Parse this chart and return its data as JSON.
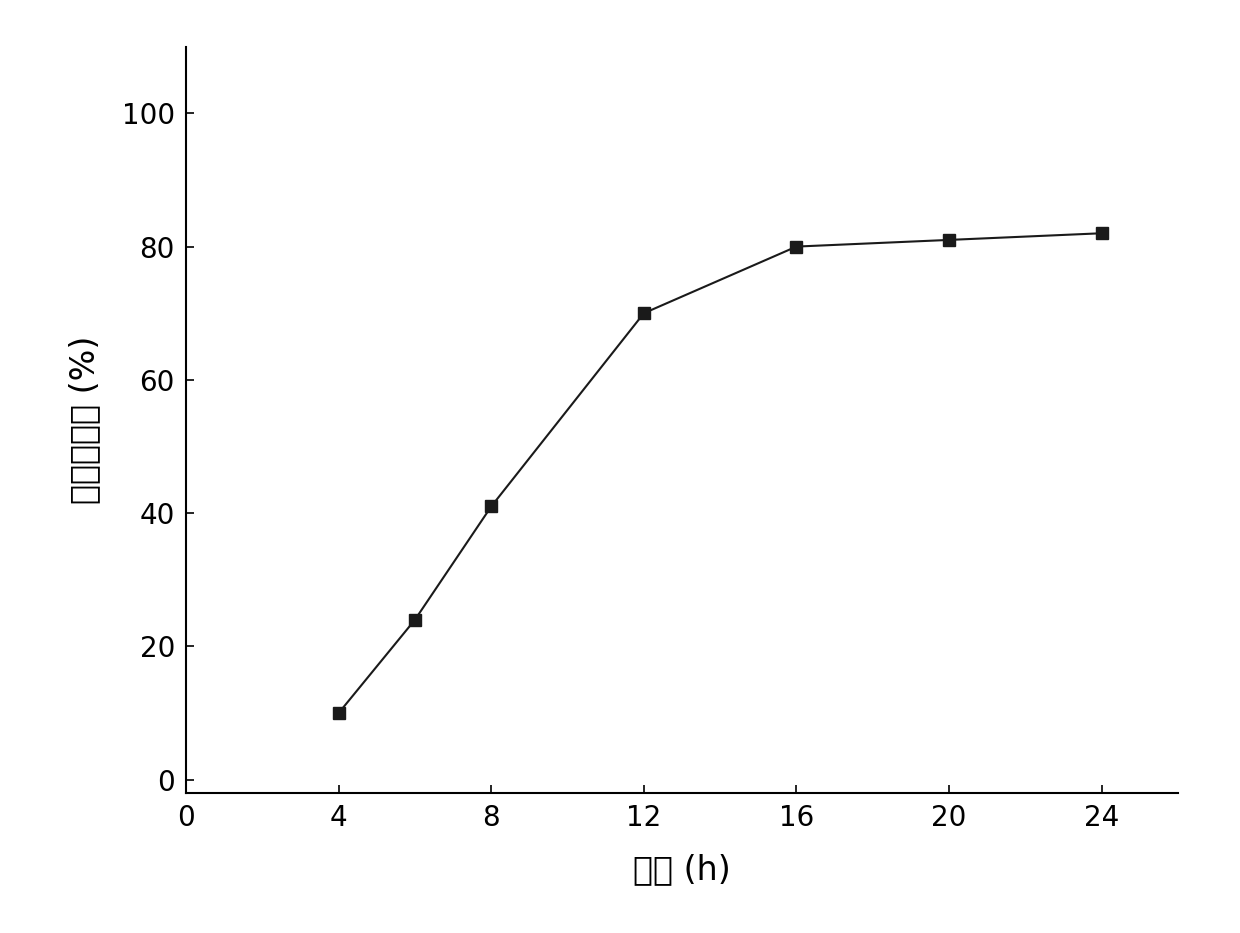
{
  "x": [
    4,
    6,
    8,
    12,
    16,
    20,
    24
  ],
  "y": [
    10,
    24,
    41,
    70,
    80,
    81,
    82
  ],
  "xlabel": "时间 (h)",
  "ylabel": "累积释放度 (%)",
  "xlim": [
    0,
    26
  ],
  "ylim": [
    -2,
    110
  ],
  "xticks": [
    0,
    4,
    8,
    12,
    16,
    20,
    24
  ],
  "yticks": [
    0,
    20,
    40,
    60,
    80,
    100
  ],
  "line_color": "#1a1a1a",
  "marker": "s",
  "marker_size": 9,
  "marker_color": "#1a1a1a",
  "line_width": 1.5,
  "background_color": "#ffffff",
  "tick_fontsize": 20,
  "label_fontsize": 24
}
